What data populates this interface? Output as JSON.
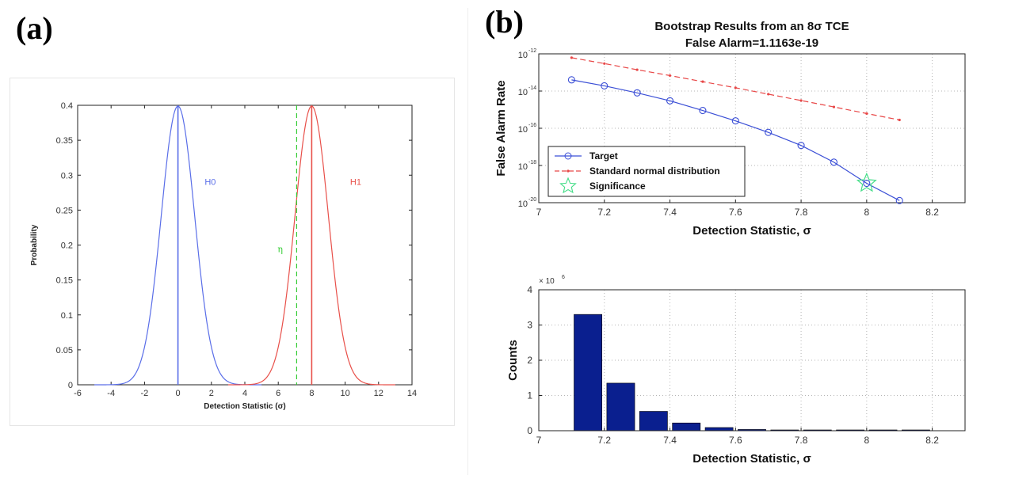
{
  "panels": {
    "a_label": "(a)",
    "b_label": "(b)"
  },
  "chart_data": [
    {
      "type": "line",
      "title": "",
      "xlabel": "Detection Statistic (σ)",
      "ylabel": "Probability",
      "xlim": [
        -6,
        14
      ],
      "ylim": [
        0,
        0.4
      ],
      "xticks": [
        -6,
        -4,
        -2,
        0,
        2,
        4,
        6,
        8,
        10,
        12,
        14
      ],
      "yticks": [
        0,
        0.05,
        0.1,
        0.15,
        0.2,
        0.25,
        0.3,
        0.35,
        0.4
      ],
      "grid": false,
      "series": [
        {
          "name": "H0",
          "mean": 0,
          "sd": 1,
          "color": "#5a6ee8"
        },
        {
          "name": "H1",
          "mean": 8,
          "sd": 1,
          "color": "#e8504a"
        }
      ],
      "vlines": [
        {
          "x": 0,
          "color": "#5a6ee8",
          "style": "solid"
        },
        {
          "x": 8,
          "color": "#e8504a",
          "style": "solid"
        },
        {
          "x": 7.1,
          "label": "η",
          "color": "#33cc33",
          "style": "dashed"
        }
      ],
      "colors": {
        "axis": "#222222",
        "label_eta": "#33cc33"
      }
    },
    {
      "type": "line",
      "title": "Bootstrap Results  from an 8σ TCE",
      "subtitle": "False Alarm=1.1163e-19",
      "xlabel": "Detection Statistic, σ",
      "ylabel": "False Alarm Rate",
      "yscale": "log",
      "xlim": [
        7,
        8.3
      ],
      "ylim": [
        1e-20,
        1e-12
      ],
      "xticks": [
        7,
        7.2,
        7.4,
        7.6,
        7.8,
        8,
        8.2
      ],
      "ytick_exponents": [
        -12,
        -14,
        -16,
        -18,
        -20
      ],
      "ytick_base": "10",
      "grid": true,
      "legend": {
        "placement": "lower-left",
        "entries": [
          "Target",
          "Standard normal distribution",
          "Significance"
        ]
      },
      "series": [
        {
          "name": "Target",
          "color": "#3b4fd6",
          "x": [
            7.1,
            7.2,
            7.3,
            7.4,
            7.5,
            7.6,
            7.7,
            7.8,
            7.9,
            8.0,
            8.1
          ],
          "y": [
            4e-14,
            1.9e-14,
            8e-15,
            3e-15,
            9e-16,
            2.5e-16,
            6e-17,
            1.2e-17,
            1.5e-18,
            1.1e-19,
            1.3e-20
          ]
        },
        {
          "name": "Standard normal distribution",
          "color": "#e84848",
          "x": [
            7.1,
            7.2,
            7.3,
            7.4,
            7.5,
            7.6,
            7.7,
            7.8,
            7.9,
            8.0,
            8.1
          ],
          "y": [
            6.2e-13,
            3e-13,
            1.4e-13,
            6.8e-14,
            3.2e-14,
            1.5e-14,
            6.8e-15,
            3.1e-15,
            1.4e-15,
            6.2e-16,
            2.8e-16
          ]
        },
        {
          "name": "Significance",
          "color": "#44dd88",
          "x": [
            8.0
          ],
          "y": [
            1.1163e-19
          ]
        }
      ]
    },
    {
      "type": "bar",
      "title": "",
      "xlabel": "Detection Statistic, σ",
      "ylabel": "Counts",
      "multiplier_label": "× 10",
      "multiplier_exponent": "6",
      "xlim": [
        7,
        8.3
      ],
      "ylim": [
        0,
        4
      ],
      "xticks": [
        7,
        7.2,
        7.4,
        7.6,
        7.8,
        8,
        8.2
      ],
      "yticks": [
        0,
        1,
        2,
        3,
        4
      ],
      "grid": true,
      "color": "#0a1f8f",
      "x": [
        7.15,
        7.25,
        7.35,
        7.45,
        7.55,
        7.65,
        7.75,
        7.85,
        7.95,
        8.05,
        8.15
      ],
      "values": [
        3.3,
        1.35,
        0.55,
        0.22,
        0.09,
        0.035,
        0.015,
        0.008,
        0.005,
        0.003,
        0.002
      ]
    }
  ]
}
